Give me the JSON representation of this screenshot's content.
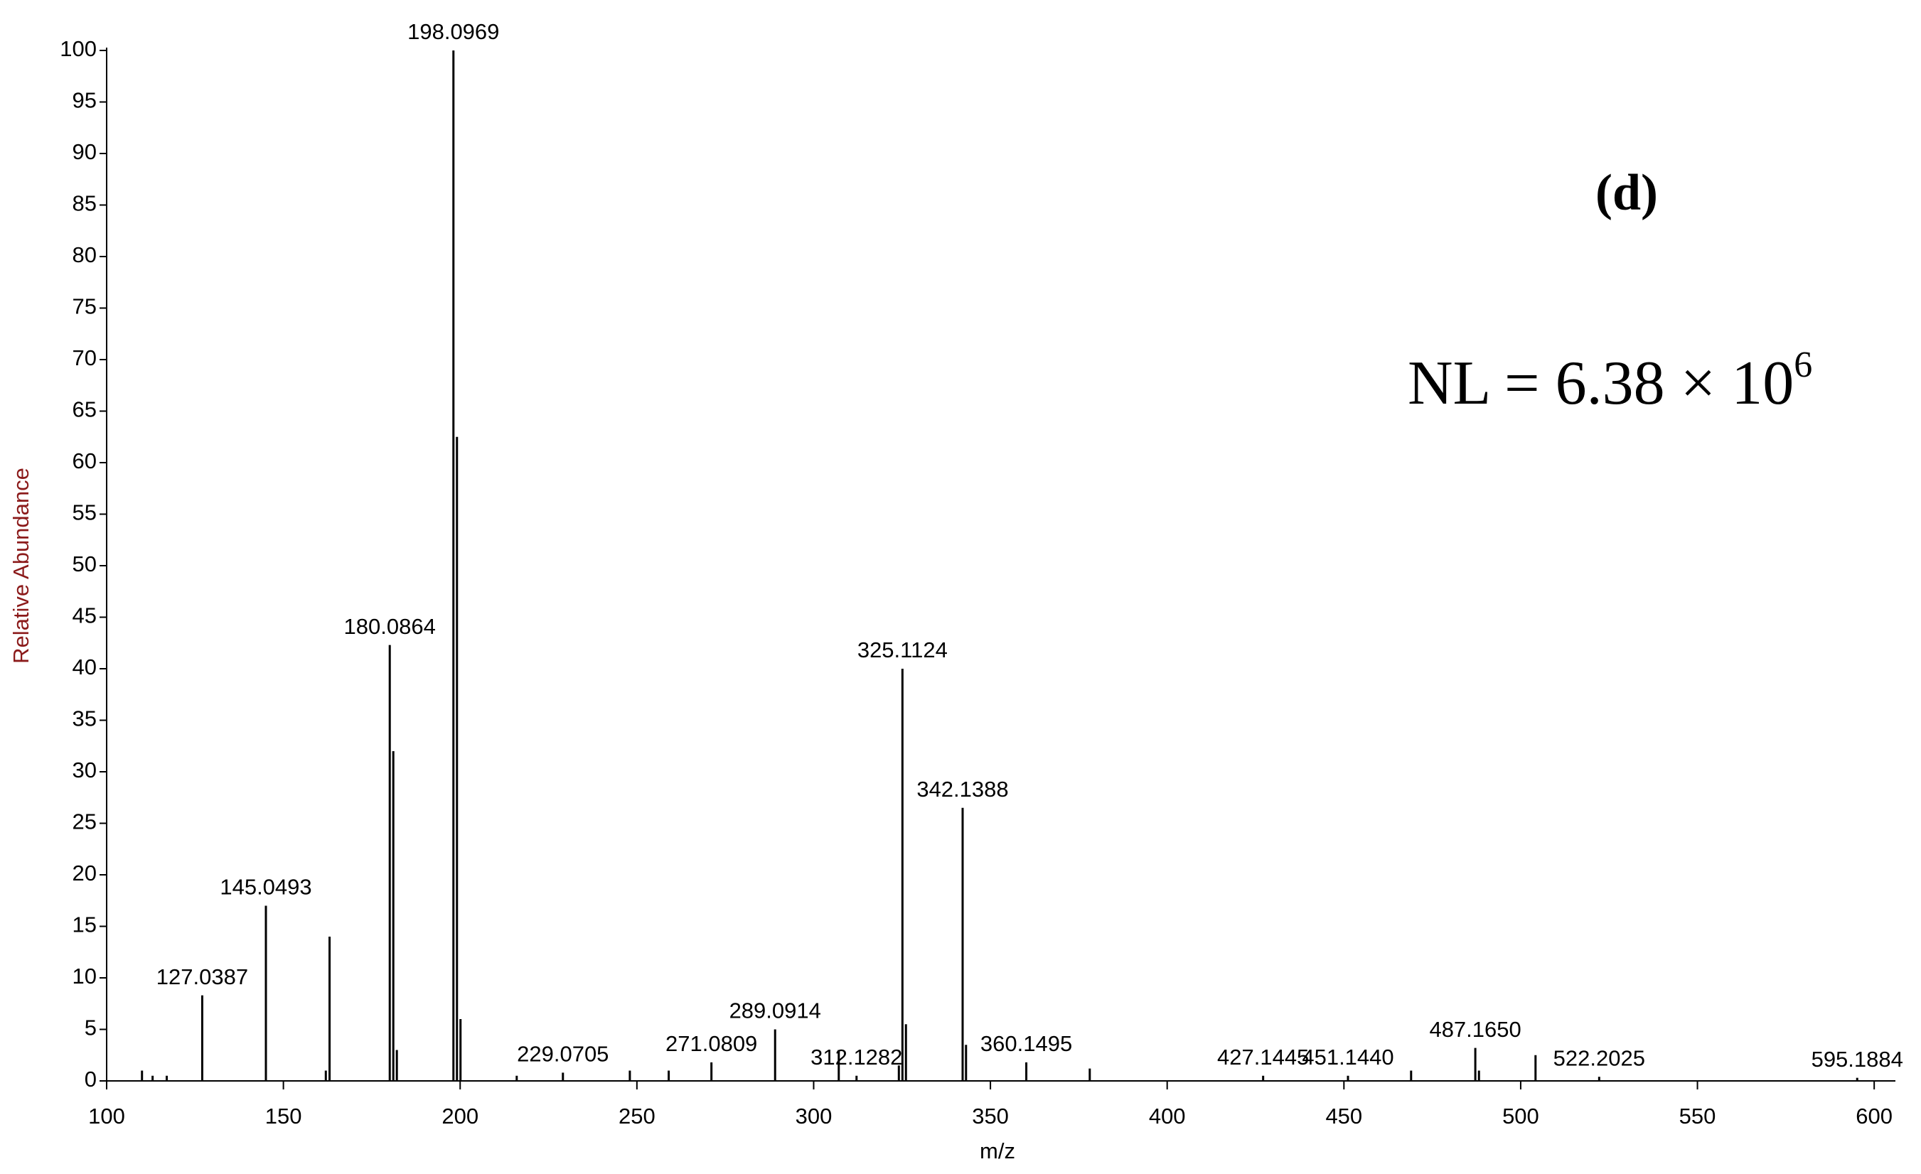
{
  "chart_data": {
    "type": "stem",
    "panel_label": "(d)",
    "normalization_label": {
      "text": "NL = 6.38 × 10",
      "exponent": "6"
    },
    "x_axis_label": "m/z",
    "y_axis_label": "Relative Abundance",
    "x": [
      127.0387,
      145.0493,
      180.0864,
      198.0969,
      229.0705,
      271.0809,
      289.0914,
      312.1282,
      325.1124,
      342.1388,
      360.1495,
      427.1445,
      {
        "value": 451.144,
        "label": "451.1440"
      },
      {
        "value": 487.165,
        "label": "487.1650"
      },
      522.2025,
      595.1884
    ],
    "values": [
      8.3,
      17,
      42.3,
      100,
      0.8,
      1.8,
      5,
      0.5,
      40,
      26.5,
      1.8,
      0.5,
      0.5,
      3.2,
      0.4,
      0.3
    ],
    "minor_x": [
      110,
      113,
      117,
      162,
      163.06,
      181.09,
      182.09,
      199.1,
      200.1,
      216,
      248,
      259,
      307.1,
      324.1,
      326.1,
      343.1,
      378.1,
      469,
      488.2,
      504.2
    ],
    "minor_values": [
      1,
      0.5,
      0.5,
      1,
      14,
      32,
      3,
      62.5,
      6,
      0.5,
      1,
      1,
      3,
      1.5,
      5.5,
      3.5,
      1.2,
      1,
      1,
      2.5
    ],
    "color": "#000000",
    "label_color": "#000000",
    "y_axis_label_color": "#8b1a1a",
    "xlim": [
      100,
      606
    ],
    "ylim": [
      0,
      100
    ],
    "xticks": [
      100,
      150,
      200,
      250,
      300,
      350,
      400,
      450,
      500,
      550,
      600
    ],
    "yticks": [
      0,
      5,
      10,
      15,
      20,
      25,
      30,
      35,
      40,
      45,
      50,
      55,
      60,
      65,
      70,
      75,
      80,
      85,
      90,
      95,
      100
    ]
  }
}
